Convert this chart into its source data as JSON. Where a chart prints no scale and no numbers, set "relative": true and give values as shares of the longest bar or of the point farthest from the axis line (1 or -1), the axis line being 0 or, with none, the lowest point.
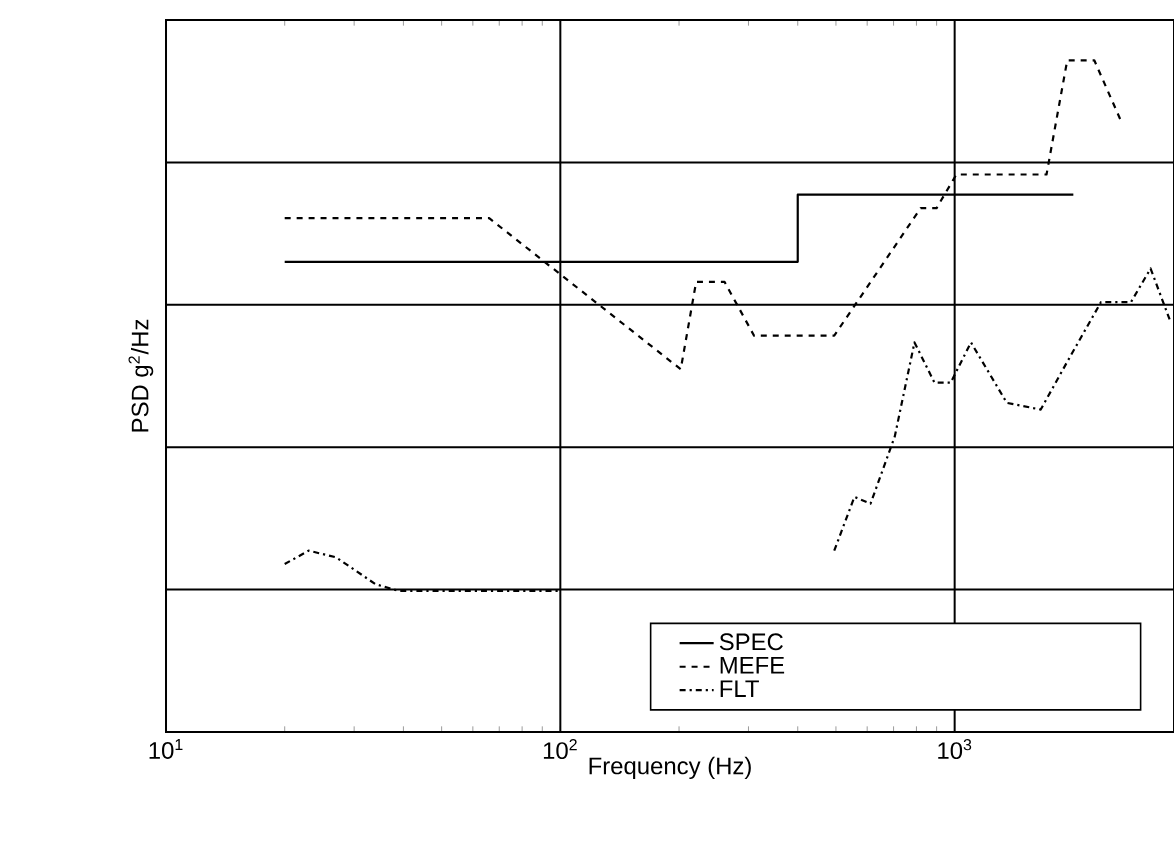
{
  "chart_data": {
    "type": "line",
    "xlabel": "Frequency (Hz)",
    "ylabel": "PSD g$^{2}$/Hz",
    "log": "x",
    "relative": true,
    "grid": true,
    "legend": "bottom right",
    "marker": "none",
    "xlim": [
      10,
      3600
    ],
    "xticks": [
      {
        "value": 10,
        "label": "10$^{1}$"
      },
      {
        "value": 100,
        "label": "10$^{2}$"
      },
      {
        "value": 1000,
        "label": "10$^{3}$"
      }
    ],
    "series": [
      {
        "name": "SPEC",
        "color": "#000000",
        "line_style": "solid",
        "x": [
          20,
          400,
          400,
          2000
        ],
        "values": [
          0.7,
          0.7,
          0.8,
          0.8
        ]
      },
      {
        "name": "MEFE",
        "color": "#000000",
        "line_style": "dashed",
        "x": [
          20,
          66,
          202,
          221,
          261,
          310,
          495,
          820,
          900,
          1010,
          1710,
          1930,
          2260,
          2640
        ],
        "values": [
          0.765,
          0.765,
          0.54,
          0.67,
          0.67,
          0.59,
          0.59,
          0.78,
          0.78,
          0.83,
          0.83,
          1,
          1,
          0.91
        ]
      },
      {
        "name": "FLT",
        "color": "#000000",
        "line_style": "dashdotted",
        "x": [
          20,
          23,
          27,
          34,
          39,
          100,
          140,
          495,
          557,
          612,
          705,
          791,
          889,
          977,
          1100,
          1356,
          1653,
          1925,
          2350,
          2800,
          3140,
          3530
        ],
        "values": [
          0.25,
          0.27,
          0.26,
          0.22,
          0.21,
          0.21,
          null,
          0.27,
          0.35,
          0.34,
          0.44,
          0.58,
          0.52,
          0.52,
          0.58,
          0.49,
          0.48,
          0.55,
          0.64,
          0.64,
          0.69,
          0.61
        ]
      }
    ]
  }
}
